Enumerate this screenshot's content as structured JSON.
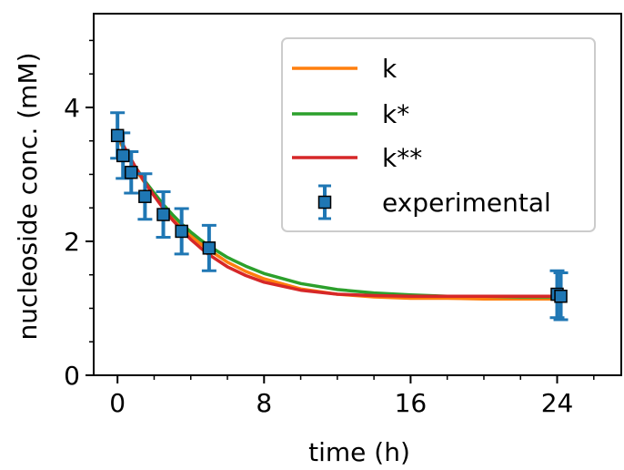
{
  "chart_data": {
    "type": "line",
    "xlabel": "time (h)",
    "ylabel": "nucleoside conc. (mM)",
    "xlim": [
      -1.3,
      27.5
    ],
    "ylim": [
      0,
      5.4
    ],
    "xticks": [
      0,
      8,
      16,
      24
    ],
    "yticks": [
      0,
      2,
      4
    ],
    "grid": false,
    "legend_position": "top-right",
    "series": [
      {
        "name": "k",
        "kind": "line",
        "color": "#ff7f0e",
        "x": [
          0,
          0.5,
          1,
          1.5,
          2,
          2.5,
          3,
          3.5,
          4,
          4.5,
          5,
          6,
          7,
          8,
          10,
          12,
          14,
          16,
          18,
          20,
          22,
          24
        ],
        "y": [
          3.55,
          3.3,
          3.07,
          2.87,
          2.68,
          2.51,
          2.36,
          2.21,
          2.09,
          1.97,
          1.87,
          1.69,
          1.55,
          1.44,
          1.29,
          1.21,
          1.17,
          1.15,
          1.15,
          1.14,
          1.14,
          1.14
        ]
      },
      {
        "name": "k*",
        "kind": "line",
        "color": "#2ca02c",
        "x": [
          0,
          0.5,
          1,
          1.5,
          2,
          2.5,
          3,
          3.5,
          4,
          4.5,
          5,
          6,
          7,
          8,
          10,
          12,
          14,
          16,
          18,
          20,
          22,
          24
        ],
        "y": [
          3.58,
          3.33,
          3.1,
          2.9,
          2.72,
          2.55,
          2.4,
          2.26,
          2.14,
          2.03,
          1.93,
          1.76,
          1.63,
          1.52,
          1.37,
          1.28,
          1.23,
          1.2,
          1.18,
          1.18,
          1.17,
          1.17
        ]
      },
      {
        "name": "k**",
        "kind": "line",
        "color": "#d62728",
        "x": [
          0,
          0.5,
          1,
          1.5,
          2,
          2.5,
          3,
          3.5,
          4,
          4.5,
          5,
          6,
          7,
          8,
          10,
          12,
          14,
          16,
          18,
          20,
          22,
          24
        ],
        "y": [
          3.6,
          3.34,
          3.1,
          2.88,
          2.68,
          2.49,
          2.32,
          2.17,
          2.03,
          1.91,
          1.8,
          1.62,
          1.49,
          1.39,
          1.27,
          1.21,
          1.19,
          1.18,
          1.18,
          1.18,
          1.18,
          1.18
        ]
      },
      {
        "name": "experimental",
        "kind": "errorbar",
        "color": "#1f77b4",
        "x": [
          0,
          0.3,
          0.75,
          1.5,
          2.5,
          3.5,
          5,
          24,
          24.2
        ],
        "y": [
          3.58,
          3.28,
          3.03,
          2.67,
          2.4,
          2.15,
          1.9,
          1.21,
          1.18
        ],
        "yerr": [
          0.34,
          0.34,
          0.31,
          0.34,
          0.34,
          0.34,
          0.34,
          0.35,
          0.35
        ]
      }
    ]
  }
}
